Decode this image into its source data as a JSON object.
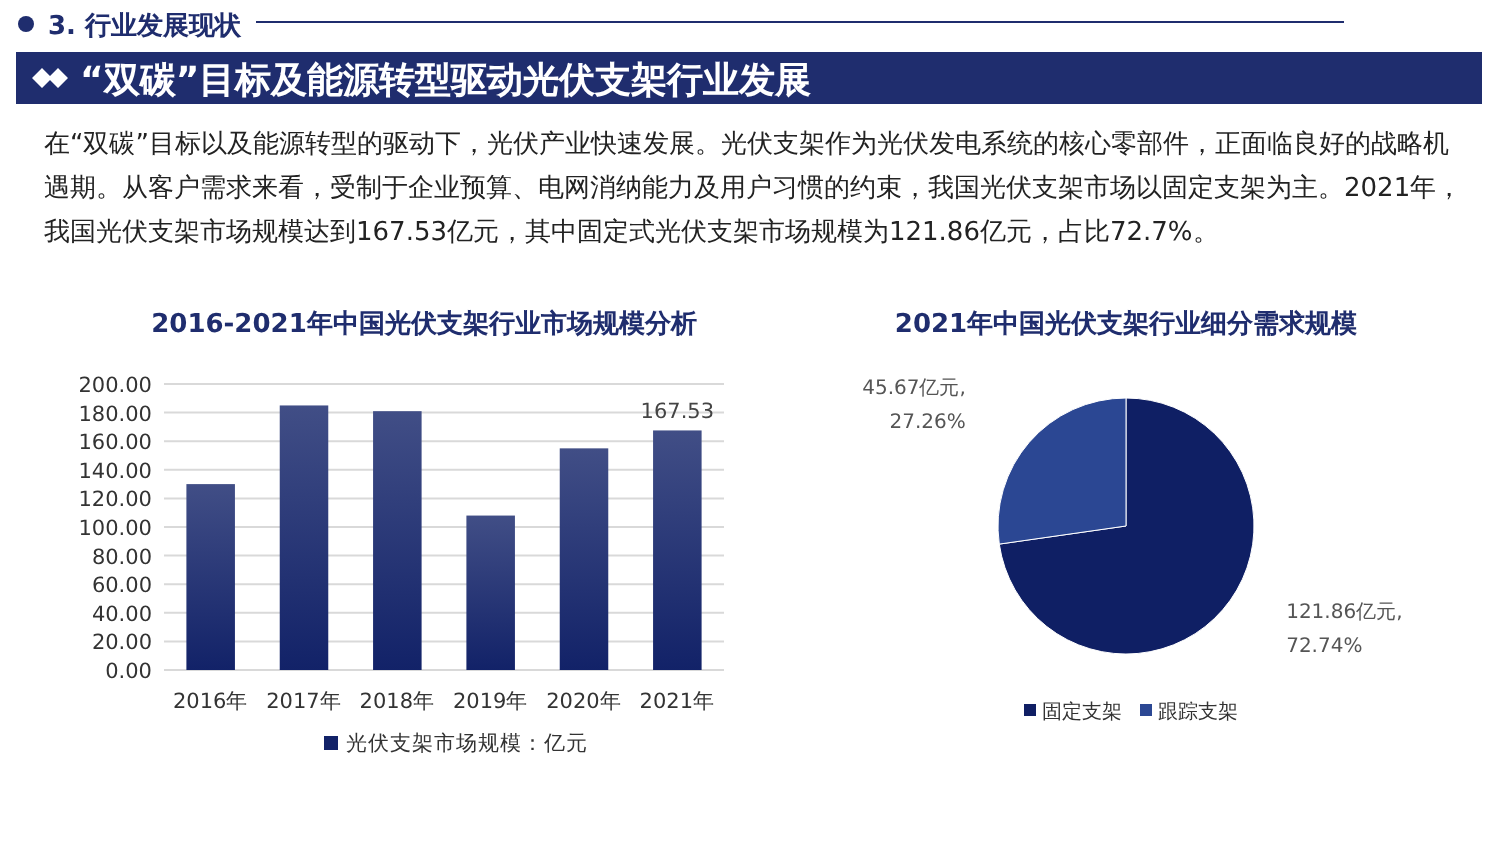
{
  "chart_data": [
    {
      "type": "other",
      "title": "“双碳”目标及能源转型驱动光伏支架行业发展",
      "annotations": [
        "3. 行业发展现状",
        "在“双碳”目标以及能源转型的驱动下，光伏产业快速发展。光伏支架作为光伏发电系统的核心零部件，正面临良好的战略机遇期。从客户需求来看，受制于企业预算、电网消纳能力及用户习惯的约束，我国光伏支架市场以固定支架为主。2021年，我国光伏支架市场规模达到167.53亿元，其中固定式光伏支架市场规模为121.86亿元，占比72.7%。"
      ]
    },
    {
      "type": "bar",
      "title": "2016-2021年中国光伏支架行业市场规模分析",
      "categories": [
        "2016年",
        "2017年",
        "2018年",
        "2019年",
        "2020年",
        "2021年"
      ],
      "series": [
        {
          "name": "光伏支架市场规模：亿元",
          "color": "#122268",
          "values": [
            130,
            185,
            181,
            108,
            155,
            167.53
          ],
          "value_labels": [
            null,
            null,
            null,
            null,
            null,
            "167.53"
          ]
        }
      ],
      "ylim": [
        0,
        200
      ],
      "yticks": [
        {
          "value": 0,
          "label": "0.00"
        },
        {
          "value": 20,
          "label": "20.00"
        },
        {
          "value": 40,
          "label": "40.00"
        },
        {
          "value": 60,
          "label": "60.00"
        },
        {
          "value": 80,
          "label": "80.00"
        },
        {
          "value": 100,
          "label": "100.00"
        },
        {
          "value": 120,
          "label": "120.00"
        },
        {
          "value": 140,
          "label": "140.00"
        },
        {
          "value": 160,
          "label": "160.00"
        },
        {
          "value": 180,
          "label": "180.00"
        },
        {
          "value": 200,
          "label": "200.00"
        }
      ],
      "grid": "y",
      "legend": "bottom"
    },
    {
      "type": "pie",
      "title": "2021年中国光伏支架行业细分需求规模",
      "categories": [
        "固定支架",
        "跟踪支架"
      ],
      "values": [
        121.86,
        45.67
      ],
      "colors": [
        "#0f1f64",
        "#2b4793"
      ],
      "value_labels": [
        "121.86亿元,\n72.74%",
        "45.67亿元,\n27.26%"
      ],
      "legend": "bottom"
    }
  ]
}
